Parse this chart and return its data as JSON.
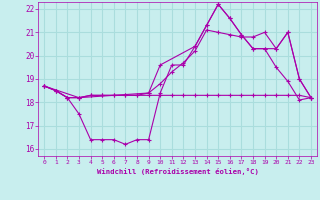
{
  "xlabel": "Windchill (Refroidissement éolien,°C)",
  "bg_color": "#c8eeee",
  "line_color": "#aa00aa",
  "grid_color": "#aadddd",
  "xlim": [
    -0.5,
    23.5
  ],
  "ylim": [
    15.7,
    22.3
  ],
  "xticks": [
    0,
    1,
    2,
    3,
    4,
    5,
    6,
    7,
    8,
    9,
    10,
    11,
    12,
    13,
    14,
    15,
    16,
    17,
    18,
    19,
    20,
    21,
    22,
    23
  ],
  "yticks": [
    16,
    17,
    18,
    19,
    20,
    21,
    22
  ],
  "series": [
    {
      "x": [
        0,
        1,
        2,
        3,
        4,
        5,
        6,
        7,
        8,
        9,
        10,
        11,
        12,
        13,
        14,
        15,
        16,
        17,
        18,
        19,
        20,
        21,
        22,
        23
      ],
      "y": [
        18.7,
        18.5,
        18.2,
        18.2,
        18.3,
        18.3,
        18.3,
        18.3,
        18.3,
        18.3,
        18.3,
        18.3,
        18.3,
        18.3,
        18.3,
        18.3,
        18.3,
        18.3,
        18.3,
        18.3,
        18.3,
        18.3,
        18.3,
        18.2
      ]
    },
    {
      "x": [
        0,
        1,
        2,
        3,
        4,
        5,
        6,
        7,
        8,
        9,
        10,
        11,
        12,
        13,
        14,
        15,
        16,
        17,
        18,
        19,
        20,
        21,
        22,
        23
      ],
      "y": [
        18.7,
        18.5,
        18.2,
        17.5,
        16.4,
        16.4,
        16.4,
        16.2,
        16.4,
        16.4,
        18.4,
        19.6,
        19.6,
        20.4,
        21.3,
        22.2,
        21.6,
        20.9,
        20.3,
        20.3,
        19.5,
        18.9,
        18.1,
        18.2
      ]
    },
    {
      "x": [
        0,
        1,
        2,
        3,
        4,
        5,
        6,
        7,
        8,
        9,
        10,
        11,
        12,
        13,
        14,
        15,
        16,
        17,
        18,
        19,
        20,
        21,
        22,
        23
      ],
      "y": [
        18.7,
        18.5,
        18.2,
        18.2,
        18.3,
        18.3,
        18.3,
        18.3,
        18.3,
        18.4,
        18.8,
        19.3,
        19.7,
        20.2,
        21.1,
        21.0,
        20.9,
        20.8,
        20.8,
        21.0,
        20.3,
        21.0,
        19.0,
        18.2
      ]
    },
    {
      "x": [
        0,
        3,
        9,
        10,
        13,
        14,
        15,
        16,
        17,
        18,
        19,
        20,
        21,
        22,
        23
      ],
      "y": [
        18.7,
        18.2,
        18.4,
        19.6,
        20.4,
        21.3,
        22.2,
        21.6,
        20.9,
        20.3,
        20.3,
        20.3,
        21.0,
        19.0,
        18.2
      ]
    }
  ]
}
